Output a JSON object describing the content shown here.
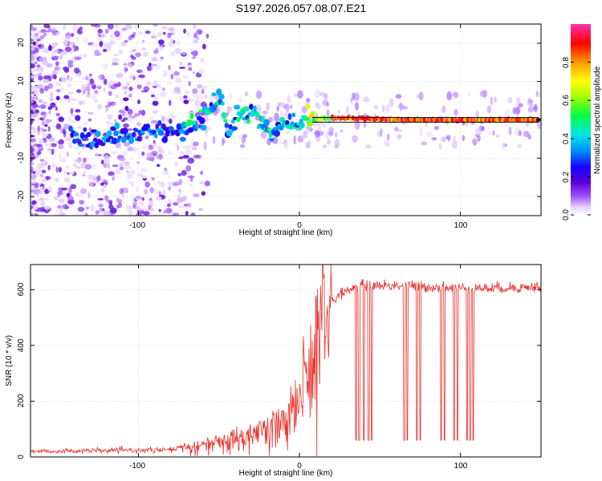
{
  "title": "S197.2026.057.08.07.E21",
  "colors": {
    "trace": "#e8302a",
    "grid": "#c8c8c8",
    "frame": "#000000",
    "colormap": [
      "#ffffff",
      "#e6d2ff",
      "#9b4dff",
      "#5a00d6",
      "#1a00ff",
      "#0088ff",
      "#00e5e5",
      "#00ff44",
      "#a6ff00",
      "#ffff00",
      "#ff9900",
      "#ff0000",
      "#ff33aa"
    ]
  },
  "chart_data": [
    {
      "type": "heatmap",
      "name": "spectrogram",
      "xlabel": "Height of straight line (km)",
      "ylabel": "Frequency (Hz)",
      "xlim": [
        -167,
        150
      ],
      "ylim": [
        -25,
        25
      ],
      "xticks": [
        -100,
        0,
        100
      ],
      "yticks": [
        -20,
        -10,
        0,
        10,
        20
      ],
      "xtick_labels": [
        "-100",
        "0",
        "100"
      ],
      "ytick_labels": [
        "-20",
        "-10",
        "0",
        "10",
        "20"
      ],
      "ridge": {
        "x": [
          -142,
          -130,
          -115,
          -100,
          -90,
          -80,
          -70,
          -60,
          -55,
          -48,
          -44,
          -40,
          -35,
          -28,
          -22,
          -17,
          -12,
          -8,
          0,
          10,
          20,
          40,
          60,
          80,
          100,
          120,
          148
        ],
        "freq": [
          -5,
          -5,
          -4,
          -3,
          -3,
          -3,
          -2,
          1,
          3,
          5,
          -2,
          0,
          2,
          1,
          -1,
          -4,
          -2,
          -1,
          0,
          0.3,
          0.5,
          0.3,
          0.1,
          0,
          0,
          0,
          0
        ]
      },
      "colorbar": {
        "label": "Normalized spectral amplitude",
        "ticks": [
          0.0,
          0.2,
          0.4,
          0.6,
          0.8
        ],
        "tick_labels": [
          "0.0",
          "0.2",
          "0.4",
          "0.6",
          "0.8"
        ],
        "range": [
          0,
          1
        ]
      }
    },
    {
      "type": "line",
      "name": "snr",
      "xlabel": "Height of straight line (km)",
      "ylabel": "SNR (10 * v/v)",
      "xlim": [
        -167,
        150
      ],
      "ylim": [
        0,
        690
      ],
      "xticks": [
        -100,
        0,
        100
      ],
      "yticks": [
        0,
        200,
        400,
        600
      ],
      "xtick_labels": [
        "-100",
        "0",
        "100"
      ],
      "ytick_labels": [
        "0",
        "200",
        "400",
        "600"
      ],
      "trend": {
        "x": [
          -167,
          -80,
          -60,
          -40,
          -20,
          -10,
          0,
          5,
          10,
          15,
          20,
          30,
          40,
          60,
          80,
          100,
          120,
          150
        ],
        "y": [
          20,
          25,
          45,
          70,
          110,
          140,
          220,
          320,
          420,
          500,
          560,
          600,
          615,
          615,
          610,
          605,
          605,
          610
        ]
      },
      "dropouts": {
        "x": [
          35,
          37,
          40,
          43,
          45,
          65,
          67,
          73,
          75,
          88,
          90,
          96,
          98,
          104,
          106,
          108
        ],
        "y": [
          60,
          60,
          60,
          60,
          60,
          60,
          60,
          60,
          60,
          60,
          60,
          60,
          60,
          60,
          60,
          60
        ]
      }
    }
  ]
}
